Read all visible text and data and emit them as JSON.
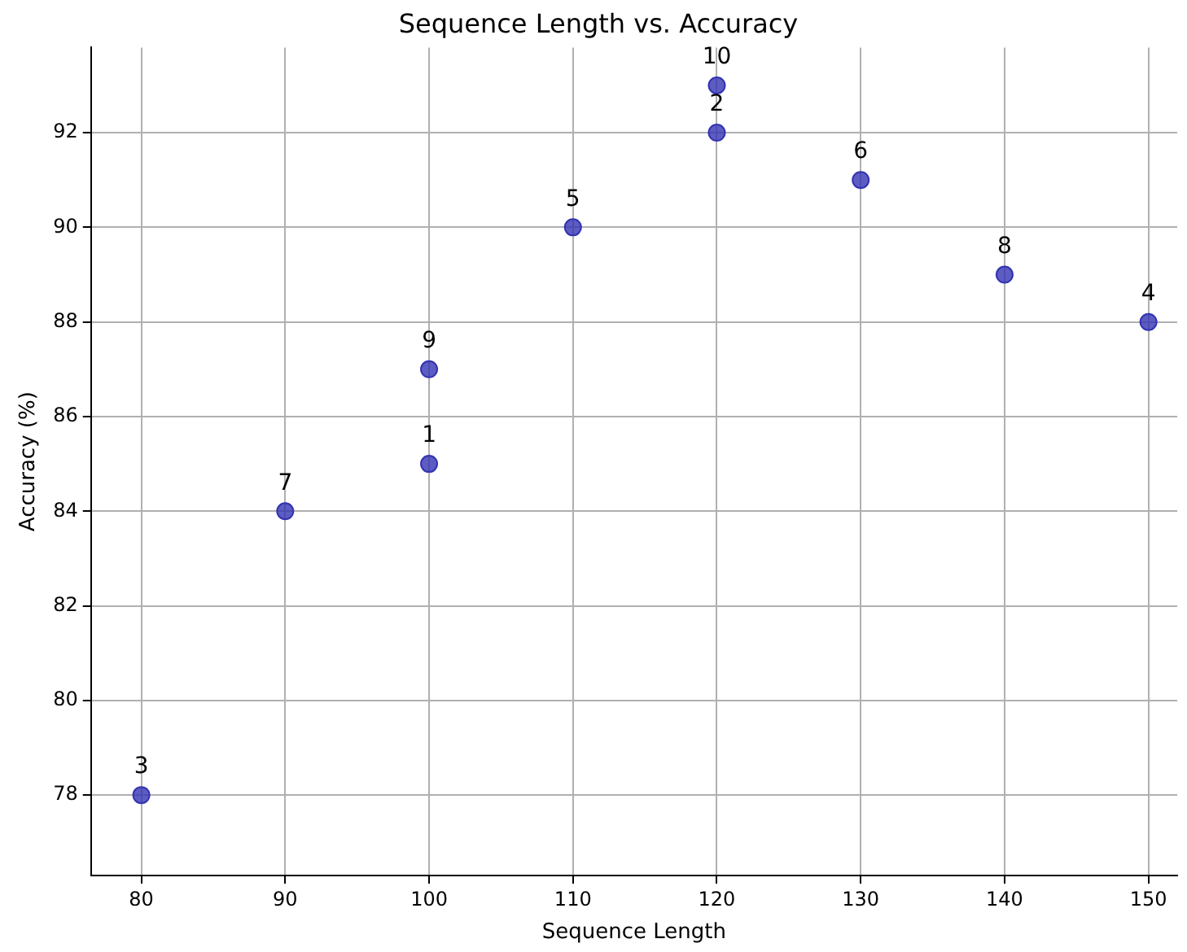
{
  "chart_data": {
    "type": "scatter",
    "title": "Sequence Length vs. Accuracy",
    "xlabel": "Sequence Length",
    "ylabel": "Accuracy (%)",
    "x": [
      100,
      120,
      80,
      150,
      110,
      130,
      90,
      140,
      100,
      120
    ],
    "series": [
      {
        "color": "#3333b3",
        "values": [
          85,
          92,
          78,
          88,
          90,
          91,
          84,
          89,
          87,
          93
        ]
      }
    ],
    "xlim": [
      76.5,
      152
    ],
    "xticks": [
      80,
      90,
      100,
      110,
      120,
      130,
      140,
      150
    ],
    "ylim": [
      76.3,
      93.8
    ],
    "yticks": [
      78,
      80,
      82,
      84,
      86,
      88,
      90,
      92
    ],
    "grid": true,
    "legend": false,
    "marker": "circle",
    "annotations": [
      {
        "text": "1",
        "x": 100,
        "y": 85
      },
      {
        "text": "2",
        "x": 120,
        "y": 92
      },
      {
        "text": "3",
        "x": 80,
        "y": 78
      },
      {
        "text": "4",
        "x": 150,
        "y": 88
      },
      {
        "text": "5",
        "x": 110,
        "y": 90
      },
      {
        "text": "6",
        "x": 130,
        "y": 91
      },
      {
        "text": "7",
        "x": 90,
        "y": 84
      },
      {
        "text": "8",
        "x": 140,
        "y": 89
      },
      {
        "text": "9",
        "x": 100,
        "y": 87
      },
      {
        "text": "10",
        "x": 120,
        "y": 93
      }
    ]
  }
}
